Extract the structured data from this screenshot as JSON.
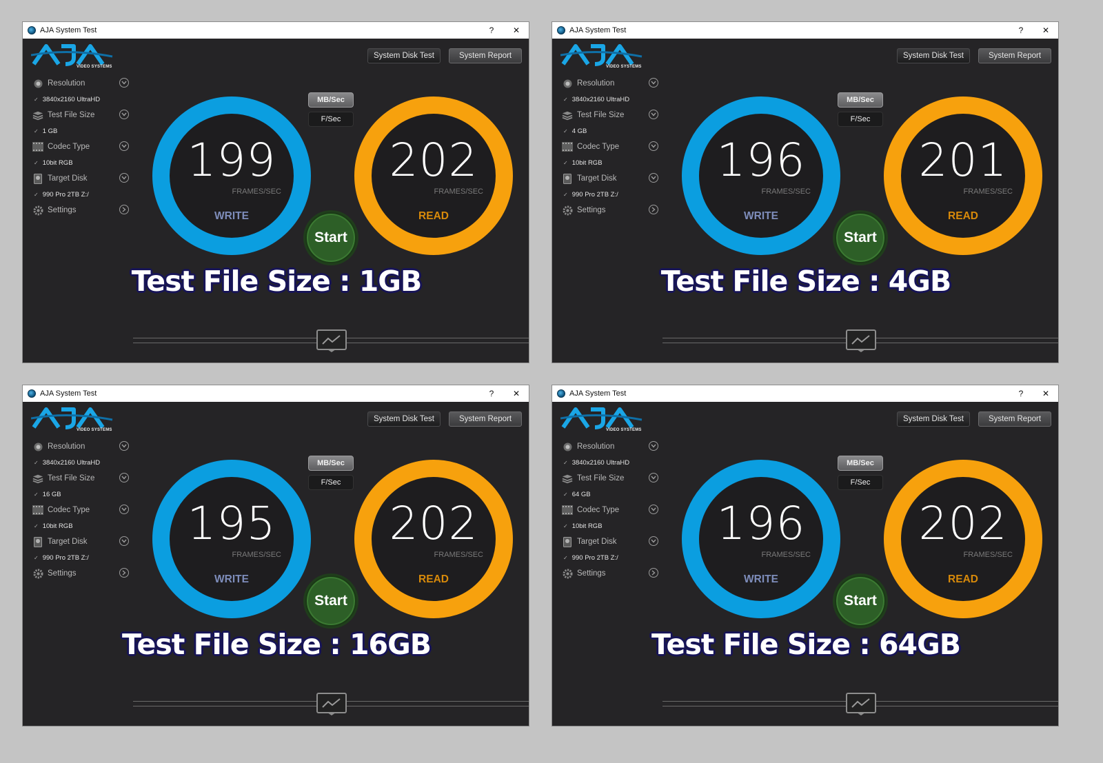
{
  "app": {
    "title": "AJA System Test",
    "help_label": "?",
    "close_label": "✕",
    "logo_text": "AJA",
    "logo_sub": "VIDEO SYSTEMS",
    "disk_test_label": "System Disk Test",
    "report_label": "System Report",
    "unit_mb": "MB/Sec",
    "unit_fps": "F/Sec",
    "start_label": "Start",
    "frames_label": "FRAMES/SEC",
    "write_label": "WRITE",
    "read_label": "READ"
  },
  "colors": {
    "write_ring": "#0b9ee0",
    "read_ring": "#f7a10d",
    "write_text": "#7e8dbb",
    "read_text": "#d88a0a",
    "caption_outline": "#171457"
  },
  "sidebar_labels": {
    "resolution": "Resolution",
    "file_size": "Test File Size",
    "codec": "Codec Type",
    "disk": "Target Disk",
    "settings": "Settings"
  },
  "icons": [
    "resolution-icon",
    "stack-icon",
    "codec-grid-icon",
    "disk-icon",
    "gear-icon",
    "chevron-down-icon",
    "chevron-right-icon",
    "graph-icon"
  ],
  "windows": [
    {
      "resolution": "3840x2160 UltraHD",
      "file_size": "1 GB",
      "codec": "10bit RGB",
      "disk": "990 Pro 2TB Z:/",
      "write_value": "199",
      "read_value": "202",
      "caption": "Test File Size : 1GB"
    },
    {
      "resolution": "3840x2160 UltraHD",
      "file_size": "4 GB",
      "codec": "10bit RGB",
      "disk": "990 Pro 2TB Z:/",
      "write_value": "196",
      "read_value": "201",
      "caption": "Test File Size : 4GB"
    },
    {
      "resolution": "3840x2160 UltraHD",
      "file_size": "16 GB",
      "codec": "10bit RGB",
      "disk": "990 Pro 2TB Z:/",
      "write_value": "195",
      "read_value": "202",
      "caption": "Test File Size : 16GB"
    },
    {
      "resolution": "3840x2160 UltraHD",
      "file_size": "64 GB",
      "codec": "10bit RGB",
      "disk": "990 Pro 2TB Z:/",
      "write_value": "196",
      "read_value": "202",
      "caption": "Test File Size : 64GB"
    }
  ]
}
